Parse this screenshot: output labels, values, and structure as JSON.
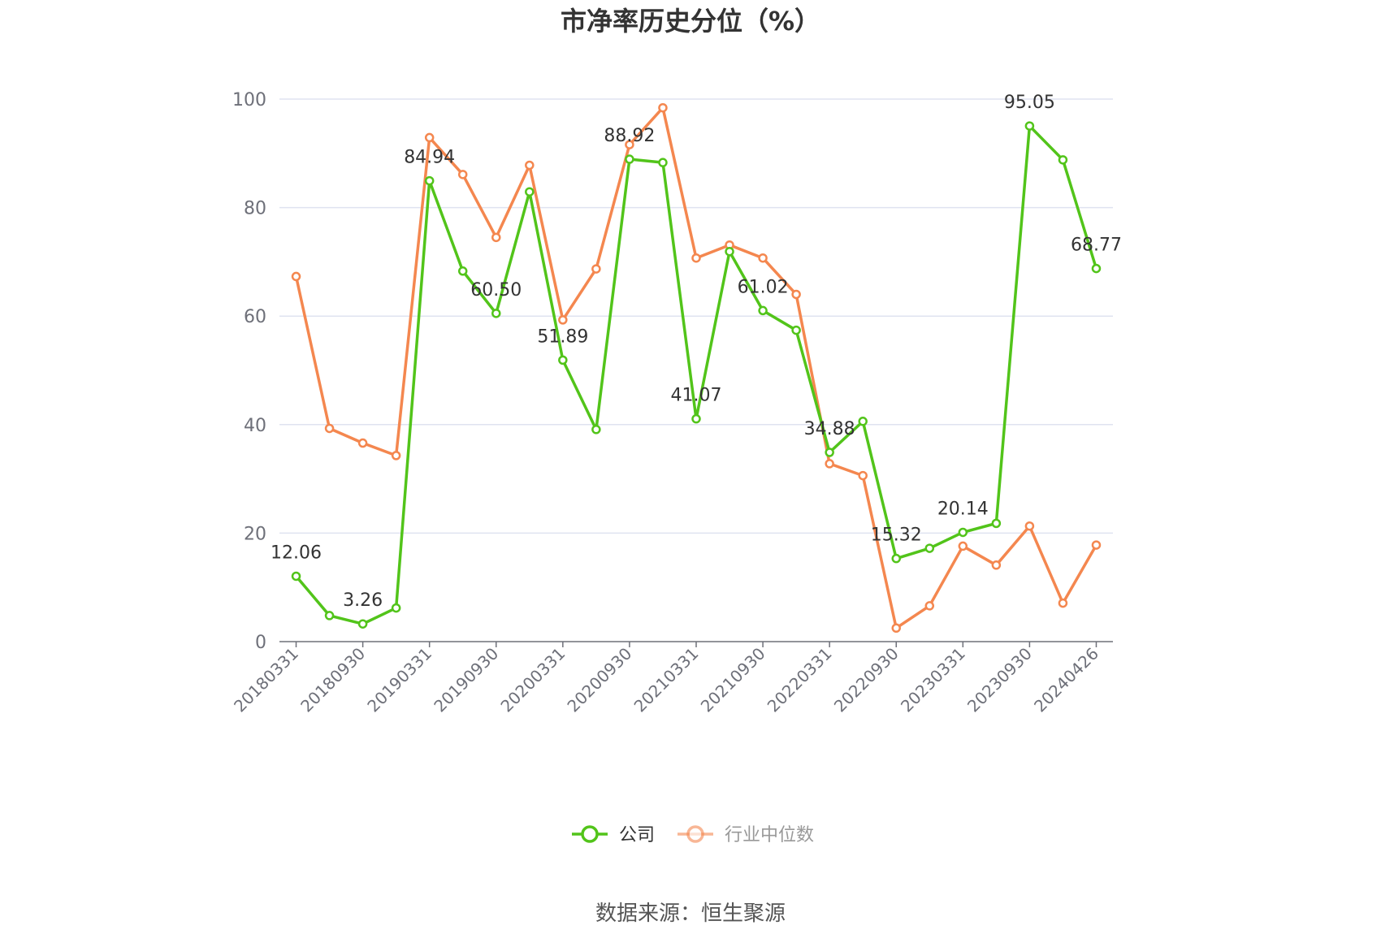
{
  "chart_data": {
    "type": "line",
    "title": "市净率历史分位（%）",
    "xlabel": "",
    "ylabel": "",
    "ylim": [
      0,
      100
    ],
    "yticks": [
      0,
      20,
      40,
      60,
      80,
      100
    ],
    "grid": true,
    "legend_position": "bottom",
    "x": [
      "20180331",
      "20180630",
      "20180930",
      "20181231",
      "20190331",
      "20190630",
      "20190930",
      "20191231",
      "20200331",
      "20200630",
      "20200930",
      "20201231",
      "20210331",
      "20210630",
      "20210930",
      "20211231",
      "20220331",
      "20220630",
      "20220930",
      "20221231",
      "20230331",
      "20230630",
      "20230930",
      "20231231",
      "20240426"
    ],
    "x_tick_labels": [
      "20180331",
      "20180930",
      "20190331",
      "20190930",
      "20200331",
      "20200930",
      "20210331",
      "20210930",
      "20220331",
      "20220930",
      "20230331",
      "20230930",
      "20240426"
    ],
    "series": [
      {
        "name": "公司",
        "color": "#52c41a",
        "values": [
          12.06,
          4.8,
          3.26,
          6.2,
          84.94,
          68.3,
          60.5,
          82.9,
          51.89,
          39.1,
          88.92,
          88.3,
          41.07,
          71.9,
          61.02,
          57.4,
          34.88,
          40.6,
          15.32,
          17.2,
          20.14,
          21.8,
          95.05,
          88.8,
          68.77
        ],
        "data_labels": [
          {
            "index": 0,
            "text": "12.06"
          },
          {
            "index": 2,
            "text": "3.26"
          },
          {
            "index": 4,
            "text": "84.94"
          },
          {
            "index": 6,
            "text": "60.50"
          },
          {
            "index": 8,
            "text": "51.89"
          },
          {
            "index": 10,
            "text": "88.92"
          },
          {
            "index": 12,
            "text": "41.07"
          },
          {
            "index": 14,
            "text": "61.02"
          },
          {
            "index": 16,
            "text": "34.88"
          },
          {
            "index": 18,
            "text": "15.32"
          },
          {
            "index": 20,
            "text": "20.14"
          },
          {
            "index": 22,
            "text": "95.05"
          },
          {
            "index": 24,
            "text": "68.77"
          }
        ]
      },
      {
        "name": "行业中位数",
        "color": "#f4874f",
        "values": [
          67.3,
          39.3,
          36.6,
          34.3,
          92.9,
          86.1,
          74.5,
          87.8,
          59.3,
          68.7,
          91.6,
          98.4,
          70.7,
          73.1,
          70.7,
          64.0,
          32.8,
          30.6,
          2.5,
          6.6,
          17.6,
          14.1,
          21.3,
          7.1,
          17.8
        ]
      }
    ]
  },
  "legend": {
    "items": [
      {
        "label": "公司",
        "color": "#52c41a",
        "text_color": "#333333"
      },
      {
        "label": "行业中位数",
        "color": "#f4874f",
        "text_color": "#999999"
      }
    ]
  },
  "source_text": "数据来源：恒生聚源",
  "colors": {
    "grid": "#dfe3f0",
    "axis": "#6e7079",
    "marker_fill": "#ffffff"
  }
}
